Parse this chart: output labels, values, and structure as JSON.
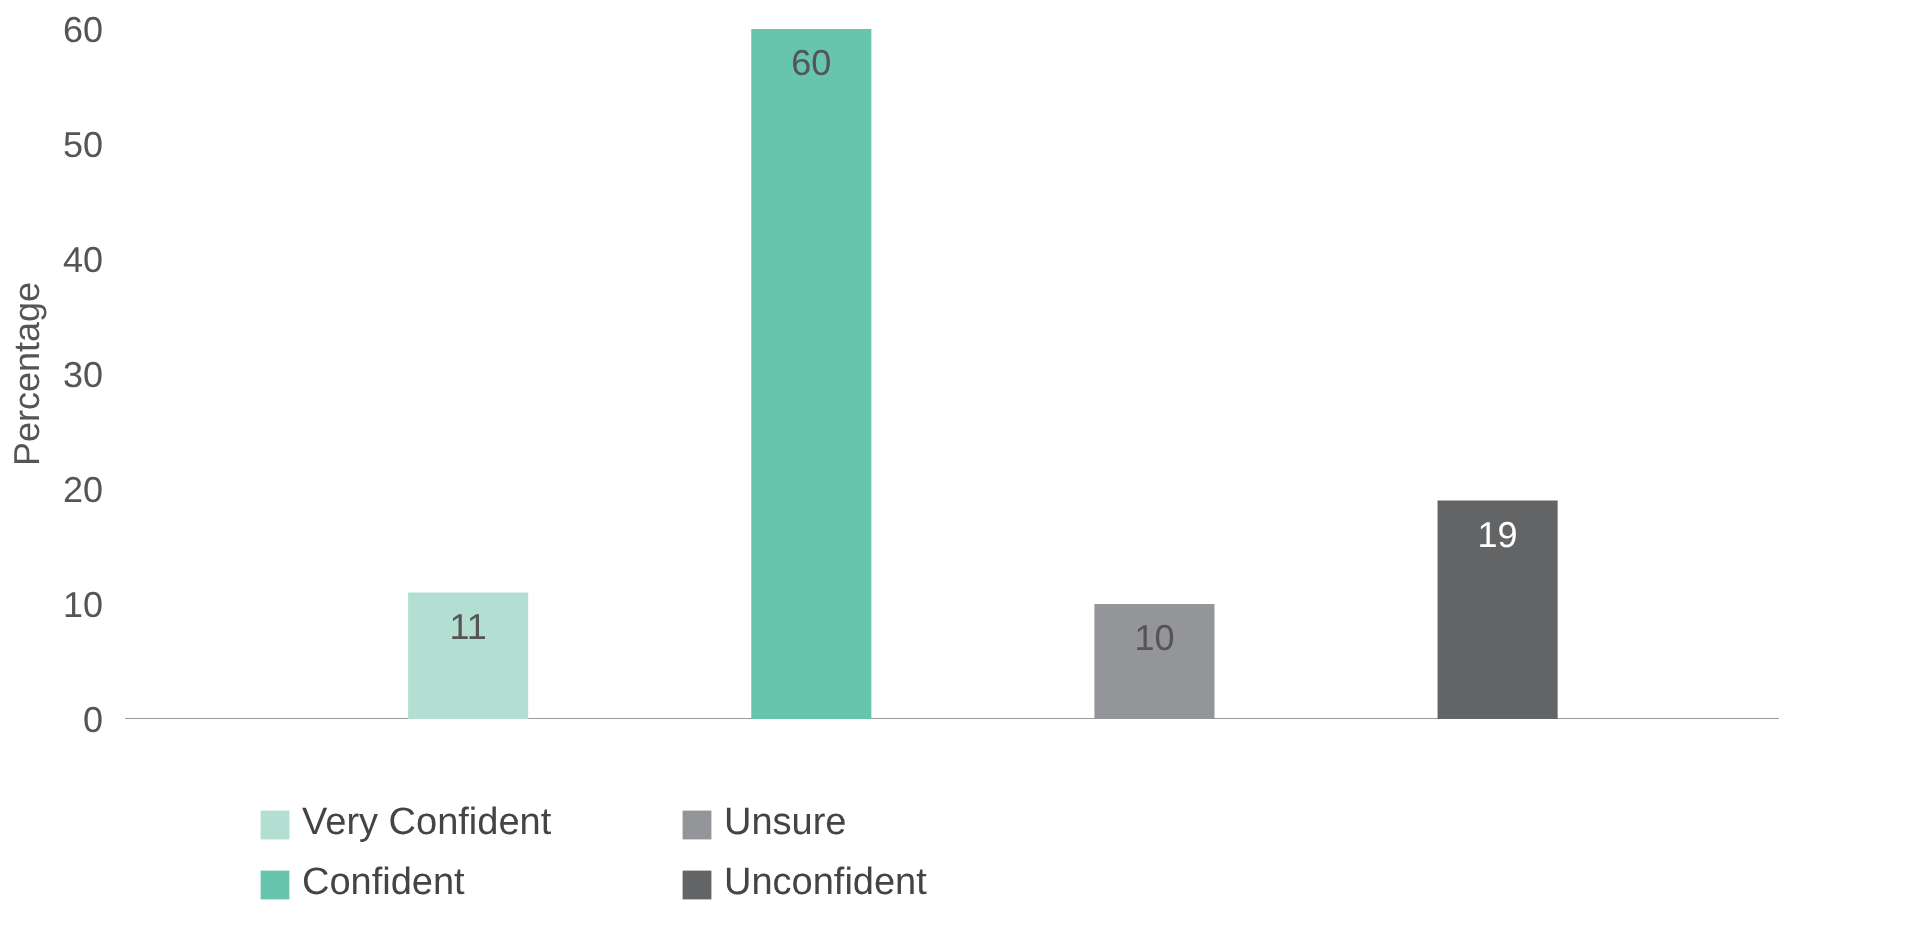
{
  "chart_data": {
    "type": "bar",
    "ylabel": "Percentage",
    "stacked": true,
    "categories": [
      null,
      null,
      null,
      null
    ],
    "series": [
      {
        "name": "Very Confident",
        "color": "#b3dfd3",
        "values": [
          11,
          null,
          null,
          null
        ]
      },
      {
        "name": "Confident",
        "color": "#67c5ae",
        "values": [
          null,
          60,
          null,
          null
        ]
      },
      {
        "name": "Unsure",
        "color": "#939598",
        "values": [
          null,
          null,
          10,
          null
        ]
      },
      {
        "name": "Unconfident",
        "color": "#636466",
        "values": [
          null,
          null,
          null,
          19
        ]
      }
    ],
    "ylim": [
      0,
      60
    ],
    "yticks": [
      0,
      10,
      20,
      30,
      40,
      50,
      60
    ],
    "data_labels": true,
    "legend": "bottom",
    "tick_labels": "y",
    "grid": false
  }
}
